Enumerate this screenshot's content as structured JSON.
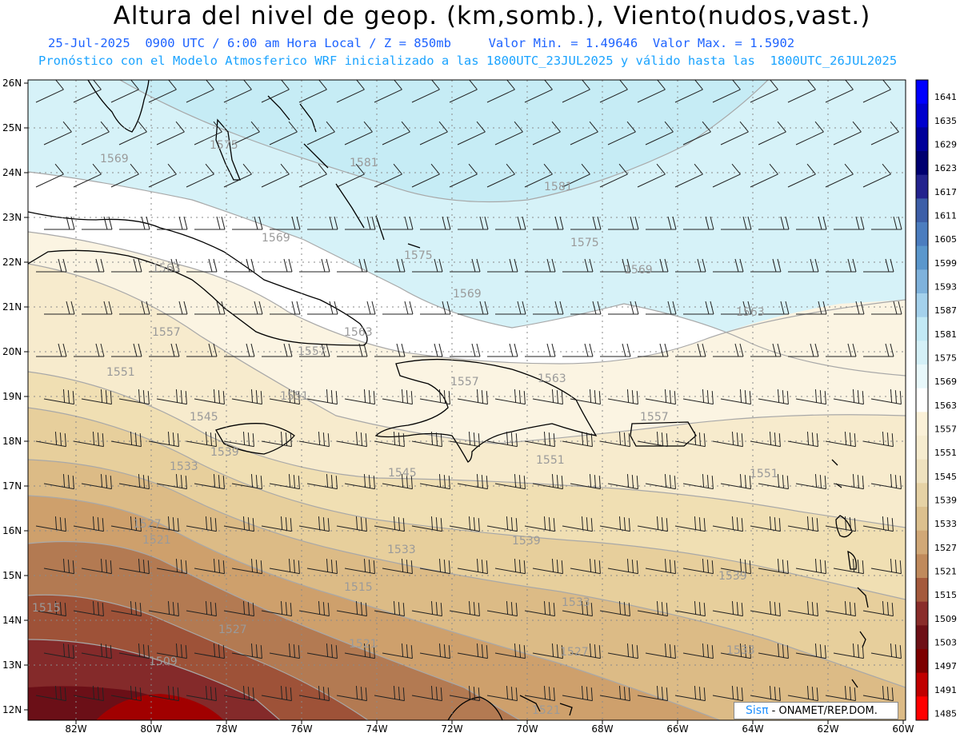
{
  "header": {
    "title": "Altura del nivel de geop. (km,somb.), Viento(nudos,vast.)",
    "line1": "25-Jul-2025  0900 UTC / 6:00 am Hora Local / Z = 850mb     Valor Min. = 1.49646  Valor Max. = 1.5902",
    "line2": "Pronóstico con el Modelo Atmosferico WRF inicializado a las 1800UTC_23JUL2025 y válido hasta las  1800UTC_26JUL2025"
  },
  "map": {
    "lon_range": [
      -83.3,
      -60
    ],
    "lat_range": [
      11.8,
      26.1
    ],
    "lat_labels": [
      "26N",
      "25N",
      "24N",
      "23N",
      "22N",
      "21N",
      "20N",
      "19N",
      "18N",
      "17N",
      "16N",
      "15N",
      "14N",
      "13N",
      "12N"
    ],
    "lon_labels": [
      "82W",
      "80W",
      "78W",
      "76W",
      "74W",
      "72W",
      "70W",
      "68W",
      "66W",
      "64W",
      "62W",
      "60W"
    ],
    "contour_labels": [
      {
        "text": "1569"
      },
      {
        "text": "1575"
      },
      {
        "text": "1581"
      },
      {
        "text": "1581"
      },
      {
        "text": "1569"
      },
      {
        "text": "1575"
      },
      {
        "text": "1575"
      },
      {
        "text": "1569"
      },
      {
        "text": "1569"
      },
      {
        "text": "1563"
      },
      {
        "text": "1563"
      },
      {
        "text": "1563"
      },
      {
        "text": "1557"
      },
      {
        "text": "1557"
      },
      {
        "text": "1563"
      },
      {
        "text": "1551"
      },
      {
        "text": "1551"
      },
      {
        "text": "1557"
      },
      {
        "text": "1545"
      },
      {
        "text": "1557"
      },
      {
        "text": "1539"
      },
      {
        "text": "1545"
      },
      {
        "text": "1551"
      },
      {
        "text": "1551"
      },
      {
        "text": "1533"
      },
      {
        "text": "1539"
      },
      {
        "text": "1527"
      },
      {
        "text": "1521"
      },
      {
        "text": "1533"
      },
      {
        "text": "1539"
      },
      {
        "text": "1515"
      },
      {
        "text": "1527"
      },
      {
        "text": "1515"
      },
      {
        "text": "1533"
      },
      {
        "text": "1509"
      },
      {
        "text": "1521"
      },
      {
        "text": "1527"
      },
      {
        "text": "1533"
      },
      {
        "text": "1521"
      }
    ]
  },
  "colorbar": {
    "labels": [
      "1641",
      "1635",
      "1629",
      "1623",
      "1617",
      "1611",
      "1605",
      "1599",
      "1593",
      "1587",
      "1581",
      "1575",
      "1569",
      "1563",
      "1557",
      "1551",
      "1545",
      "1539",
      "1533",
      "1527",
      "1521",
      "1515",
      "1509",
      "1503",
      "1497",
      "1491",
      "1485"
    ],
    "colors": [
      "#0000ff",
      "#0000cd",
      "#00009a",
      "#000070",
      "#23238e",
      "#3d5fa8",
      "#4b7dbf",
      "#5b97cc",
      "#7fb2dc",
      "#a4d1ec",
      "#c2e9f5",
      "#d4f0f7",
      "#e8f8fb",
      "#ffffff",
      "#fbf1d8",
      "#f6eccf",
      "#efe2bf",
      "#e6d2a5",
      "#dcc08e",
      "#d1a877",
      "#c08a5c",
      "#a55a3c",
      "#8a2d2a",
      "#6e1016",
      "#7d0000",
      "#c00000",
      "#ff0000"
    ]
  },
  "credit": {
    "brand": "Sisπ",
    "text": " - ONAMET/REP.DOM."
  }
}
